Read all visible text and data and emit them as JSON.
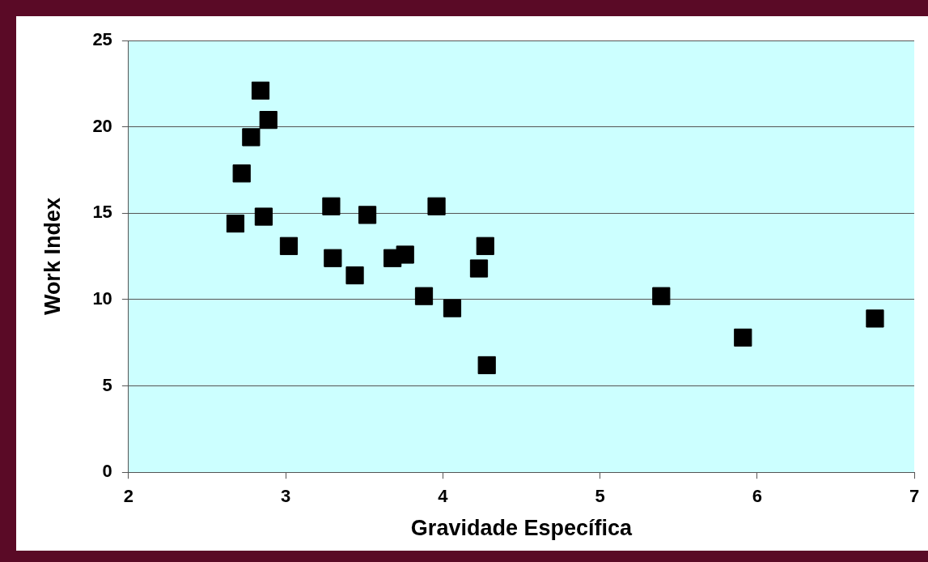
{
  "chart_data": {
    "type": "scatter",
    "xlabel": "Gravidade Específica",
    "ylabel": "Work Index",
    "x": [
      2.68,
      2.72,
      2.78,
      2.84,
      2.89,
      2.86,
      3.02,
      3.29,
      3.3,
      3.44,
      3.52,
      3.68,
      3.76,
      3.88,
      3.96,
      4.06,
      4.23,
      4.27,
      4.28,
      5.39,
      5.91,
      6.75
    ],
    "values": [
      14.4,
      17.3,
      19.4,
      22.1,
      20.4,
      14.8,
      13.1,
      15.4,
      12.4,
      11.4,
      14.9,
      12.4,
      12.6,
      10.2,
      15.4,
      9.5,
      11.8,
      13.1,
      6.2,
      10.2,
      7.8,
      8.9
    ],
    "color": "#000000",
    "marker": "square",
    "grid": "y",
    "legend": false,
    "xlim": [
      2,
      7
    ],
    "xticks": [
      2,
      3,
      4,
      5,
      6,
      7
    ],
    "ylim": [
      0,
      25
    ],
    "yticks": [
      0,
      5,
      10,
      15,
      20,
      25
    ]
  }
}
